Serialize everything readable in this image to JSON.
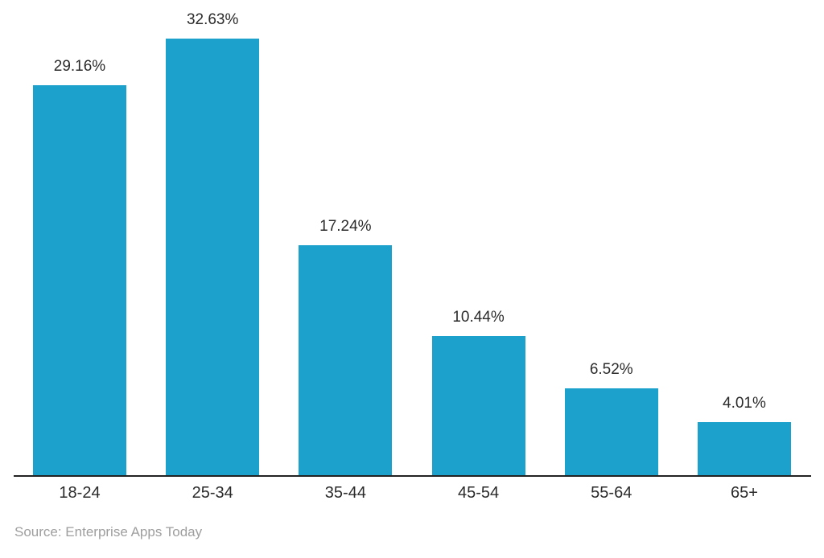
{
  "chart_data": {
    "type": "bar",
    "categories": [
      "18-24",
      "25-34",
      "35-44",
      "45-54",
      "55-64",
      "65+"
    ],
    "values": [
      29.16,
      32.63,
      17.24,
      10.44,
      6.52,
      4.01
    ],
    "value_labels": [
      "29.16%",
      "32.63%",
      "17.24%",
      "10.44%",
      "6.52%",
      "4.01%"
    ],
    "title": "",
    "xlabel": "",
    "ylabel": "",
    "ylim": [
      0,
      32.63
    ],
    "grid": false,
    "legend": false,
    "source_note": "Source: Enterprise Apps Today"
  },
  "colors": {
    "bar": "#1CA1CC",
    "axis_line": "#222222",
    "value_label": "#2b2b2b",
    "category_label": "#2b2b2b",
    "source_note": "#9e9e9e",
    "background": "#ffffff"
  }
}
